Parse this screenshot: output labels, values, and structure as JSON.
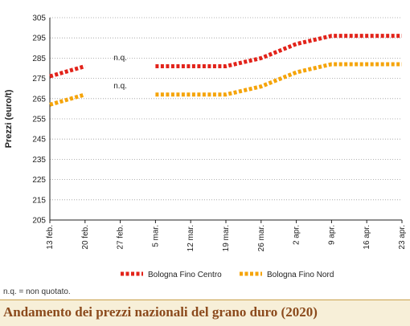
{
  "title": "Andamento dei prezzi nazionali del grano duro (2020)",
  "footnote": "n.q. = non quotato.",
  "chart_data": {
    "type": "line",
    "ylabel": "Prezzi (euro/t)",
    "xlabel": "",
    "ylim": [
      205,
      305
    ],
    "yticks": [
      205,
      215,
      225,
      235,
      245,
      255,
      265,
      275,
      285,
      295,
      305
    ],
    "categories": [
      "13 feb.",
      "20 feb.",
      "27 feb.",
      "5 mar.",
      "12 mar.",
      "19 mar.",
      "26 mar.",
      "2 apr.",
      "9 apr.",
      "16 apr.",
      "23 apr."
    ],
    "series": [
      {
        "name": "Bologna Fino Centro",
        "color": "#e2231a",
        "values": [
          276,
          281,
          null,
          281,
          281,
          281,
          285,
          292,
          296,
          296,
          296
        ]
      },
      {
        "name": "Bologna Fino Nord",
        "color": "#f5a40a",
        "values": [
          262,
          267,
          null,
          267,
          267,
          267,
          271,
          278,
          282,
          282,
          282
        ]
      }
    ],
    "annotations": [
      {
        "text": "n.q.",
        "category": "27 feb.",
        "y": 284
      },
      {
        "text": "n.q.",
        "category": "27 feb.",
        "y": 270
      }
    ],
    "grid": "horizontal",
    "legend": "bottom"
  }
}
